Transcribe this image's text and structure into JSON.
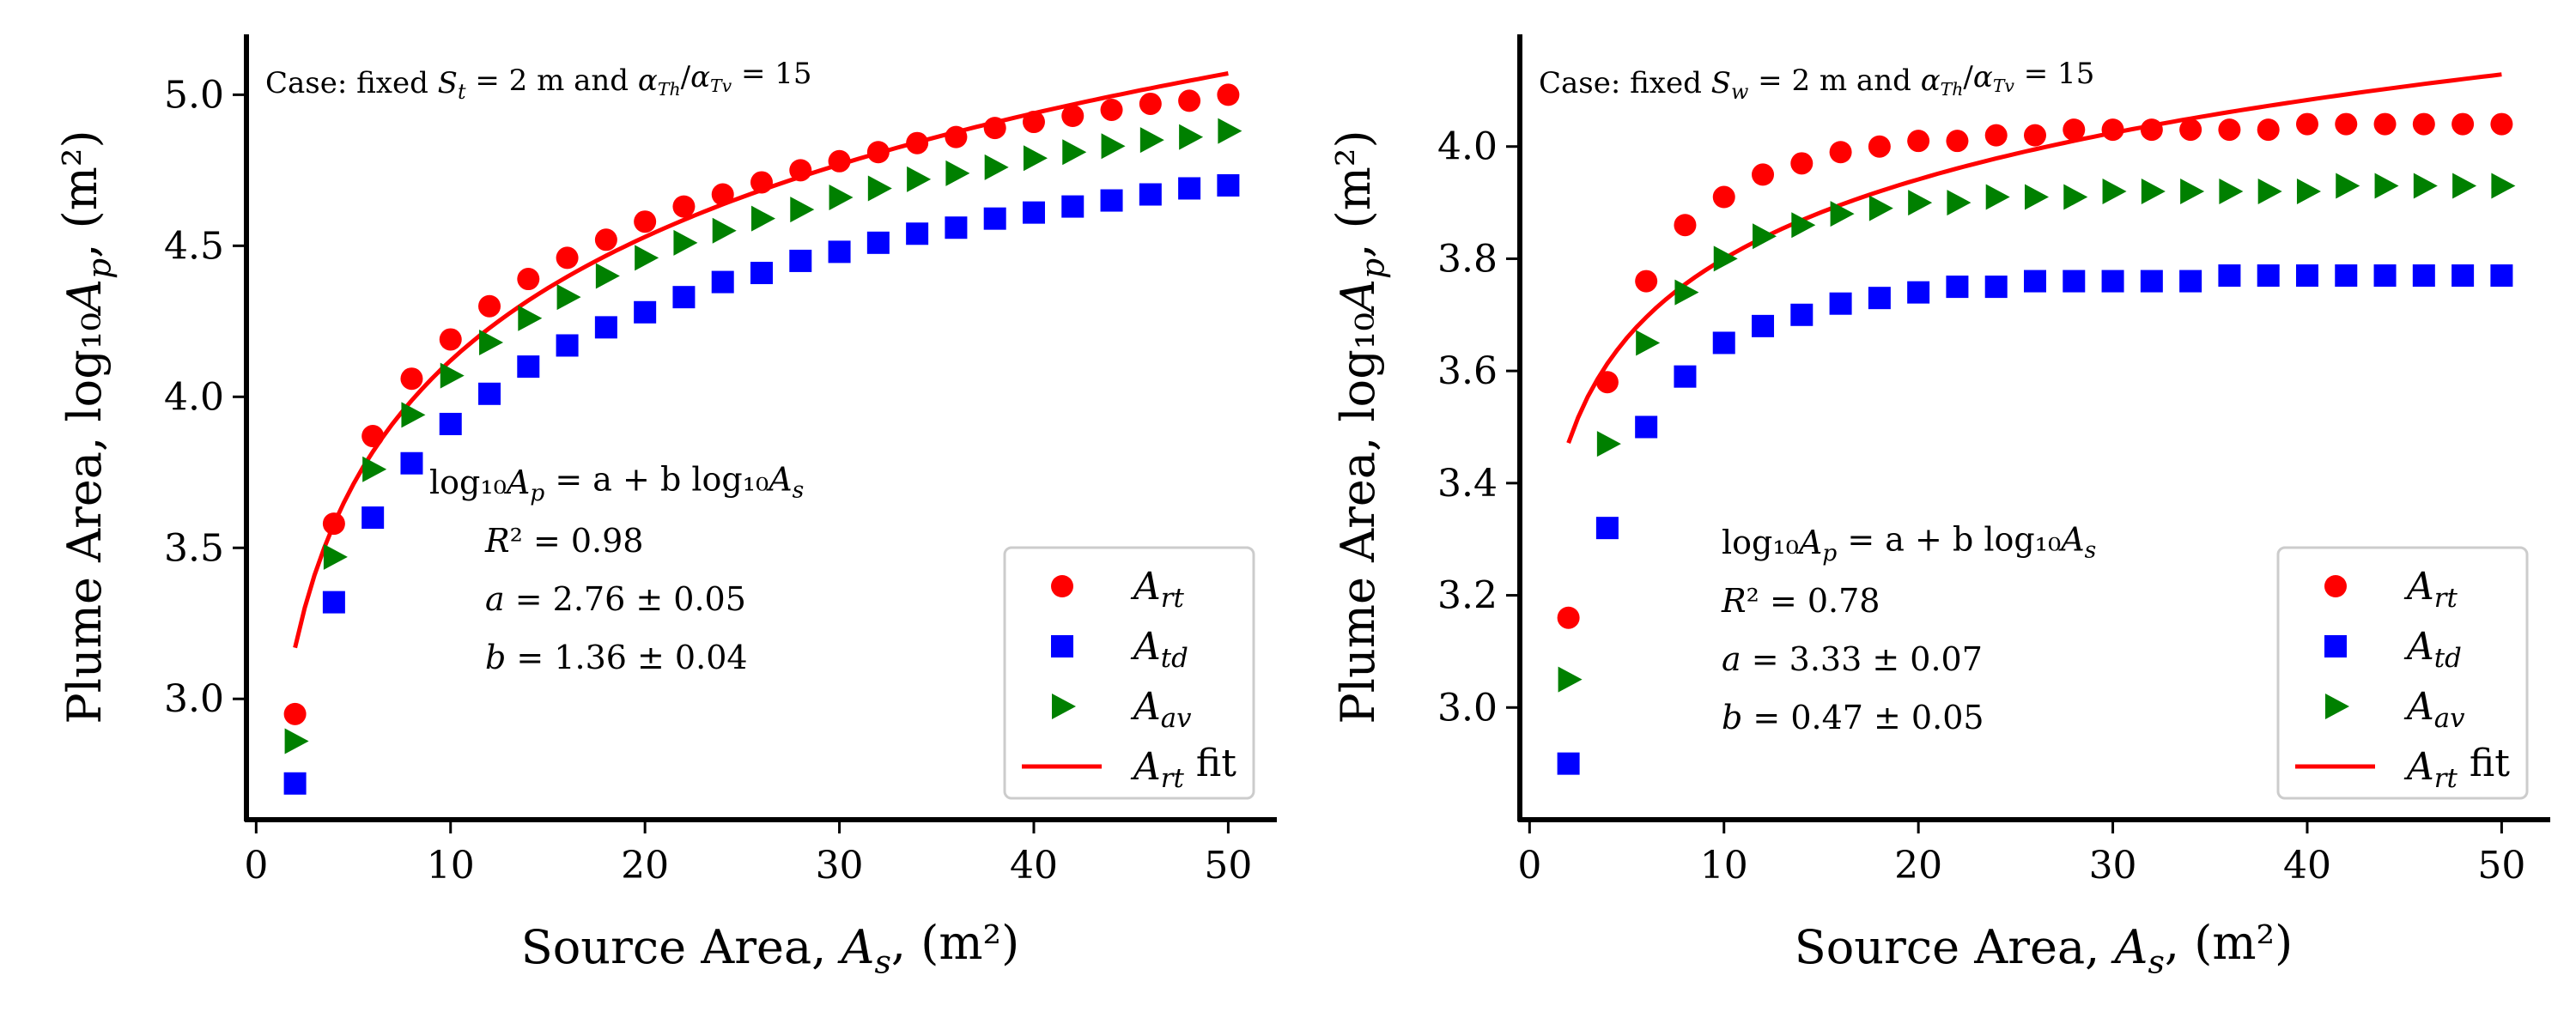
{
  "chart_data": [
    {
      "type": "scatter",
      "case_label": "Case: fixed S_t = 2 m and α_Th/α_Tv = 15",
      "xlabel": "Source Area, A_s, (m²)",
      "ylabel": "Plume Area, log₁₀A_p, (m²)",
      "xlim": [
        -0.5,
        52.5
      ],
      "ylim": [
        2.6,
        5.2
      ],
      "xticks": [
        "0",
        "10",
        "20",
        "30",
        "40",
        "50"
      ],
      "yticks": [
        "3.0",
        "3.5",
        "4.0",
        "4.5",
        "5.0"
      ],
      "x": [
        2,
        4,
        6,
        8,
        10,
        12,
        14,
        16,
        18,
        20,
        22,
        24,
        26,
        28,
        30,
        32,
        34,
        36,
        38,
        40,
        42,
        44,
        46,
        48,
        50
      ],
      "series": [
        {
          "name": "A_rt",
          "marker": "circle",
          "color": "#ff0000",
          "values": [
            2.95,
            3.58,
            3.87,
            4.06,
            4.19,
            4.3,
            4.39,
            4.46,
            4.52,
            4.58,
            4.63,
            4.67,
            4.71,
            4.75,
            4.78,
            4.81,
            4.84,
            4.86,
            4.89,
            4.91,
            4.93,
            4.95,
            4.97,
            4.98,
            5.0
          ]
        },
        {
          "name": "A_td",
          "marker": "square",
          "color": "#0000ff",
          "values": [
            2.72,
            3.32,
            3.6,
            3.78,
            3.91,
            4.01,
            4.1,
            4.17,
            4.23,
            4.28,
            4.33,
            4.38,
            4.41,
            4.45,
            4.48,
            4.51,
            4.54,
            4.56,
            4.59,
            4.61,
            4.63,
            4.65,
            4.67,
            4.69,
            4.7
          ]
        },
        {
          "name": "A_av",
          "marker": "triangle-right",
          "color": "#008000",
          "values": [
            2.86,
            3.47,
            3.76,
            3.94,
            4.07,
            4.18,
            4.26,
            4.33,
            4.4,
            4.46,
            4.51,
            4.55,
            4.59,
            4.62,
            4.66,
            4.69,
            4.72,
            4.74,
            4.76,
            4.79,
            4.81,
            4.83,
            4.85,
            4.86,
            4.88
          ]
        }
      ],
      "fit": {
        "name": "A_rt fit",
        "color": "#ff0000",
        "a": 2.76,
        "b": 1.36,
        "x_range": [
          2,
          50
        ]
      },
      "equation": {
        "formula": "log₁₀A_p = a + b log₁₀A_s",
        "r2": "R² = 0.98",
        "a": "a = 2.76 ± 0.05",
        "b": "b =  1.36 ± 0.04"
      },
      "legend_loc": "lower-right"
    },
    {
      "type": "scatter",
      "case_label": "Case: fixed S_w = 2 m and α_Th/α_Tv = 15",
      "xlabel": "Source Area, A_s, (m²)",
      "ylabel": "Plume Area, log₁₀A_p, (m²)",
      "xlim": [
        -0.5,
        52.5
      ],
      "ylim": [
        2.8,
        4.2
      ],
      "xticks": [
        "0",
        "10",
        "20",
        "30",
        "40",
        "50"
      ],
      "yticks": [
        "3.0",
        "3.2",
        "3.4",
        "3.6",
        "3.8",
        "4.0"
      ],
      "x": [
        2,
        4,
        6,
        8,
        10,
        12,
        14,
        16,
        18,
        20,
        22,
        24,
        26,
        28,
        30,
        32,
        34,
        36,
        38,
        40,
        42,
        44,
        46,
        48,
        50
      ],
      "series": [
        {
          "name": "A_rt",
          "marker": "circle",
          "color": "#ff0000",
          "values": [
            3.16,
            3.58,
            3.76,
            3.86,
            3.91,
            3.95,
            3.97,
            3.99,
            4.0,
            4.01,
            4.01,
            4.02,
            4.02,
            4.03,
            4.03,
            4.03,
            4.03,
            4.03,
            4.03,
            4.04,
            4.04,
            4.04,
            4.04,
            4.04,
            4.04
          ]
        },
        {
          "name": "A_td",
          "marker": "square",
          "color": "#0000ff",
          "values": [
            2.9,
            3.32,
            3.5,
            3.59,
            3.65,
            3.68,
            3.7,
            3.72,
            3.73,
            3.74,
            3.75,
            3.75,
            3.76,
            3.76,
            3.76,
            3.76,
            3.76,
            3.77,
            3.77,
            3.77,
            3.77,
            3.77,
            3.77,
            3.77,
            3.77
          ]
        },
        {
          "name": "A_av",
          "marker": "triangle-right",
          "color": "#008000",
          "values": [
            3.05,
            3.47,
            3.65,
            3.74,
            3.8,
            3.84,
            3.86,
            3.88,
            3.89,
            3.9,
            3.9,
            3.91,
            3.91,
            3.91,
            3.92,
            3.92,
            3.92,
            3.92,
            3.92,
            3.92,
            3.93,
            3.93,
            3.93,
            3.93,
            3.93
          ]
        }
      ],
      "fit": {
        "name": "A_rt fit",
        "color": "#ff0000",
        "a": 3.33,
        "b": 0.47,
        "x_range": [
          2,
          50
        ]
      },
      "equation": {
        "formula": "log₁₀A_p = a + b log₁₀A_s",
        "r2": "R² = 0.78",
        "a": "a = 3.33 ± 0.07",
        "b": "b =  0.47 ± 0.05"
      },
      "legend_loc": "lower-right"
    }
  ]
}
